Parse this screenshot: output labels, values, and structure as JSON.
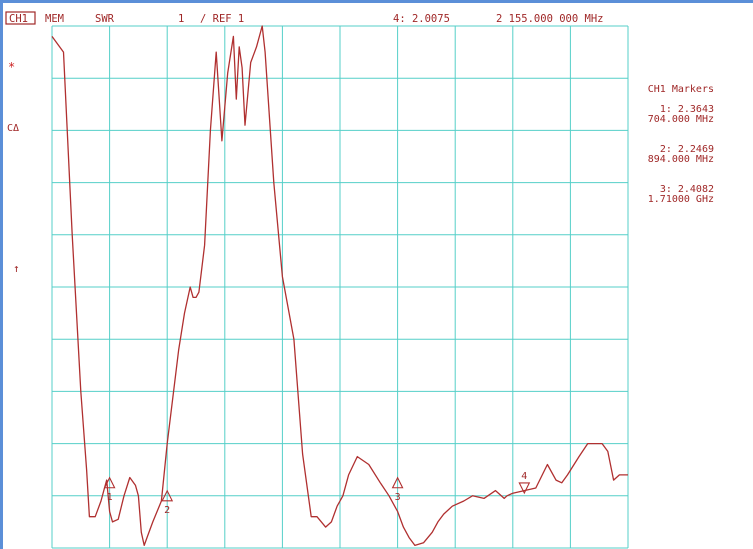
{
  "colors": {
    "trace": "#b03030",
    "grid": "#55cfc8",
    "text": "#a02828",
    "frame": "#5b8fd8",
    "background": "#ffffff"
  },
  "header": {
    "channel": "CH1",
    "mem": "MEM",
    "format": "SWR",
    "scale": "1",
    "ref": "/ REF 1",
    "active_marker_value": "4: 2.0075",
    "active_marker_freq": "2 155.000 000 MHz"
  },
  "left_annotations": {
    "star": "*",
    "cdelta": "CΔ",
    "ref_arrow": "↑"
  },
  "markers_panel": {
    "title": "CH1 Markers",
    "items": [
      {
        "value": "1: 2.3643",
        "freq": "704.000 MHz"
      },
      {
        "value": "2: 2.2469",
        "freq": "894.000 MHz"
      },
      {
        "value": "3: 2.4082",
        "freq": "1.71000 GHz"
      }
    ]
  },
  "chart_data": {
    "type": "line",
    "ylabel": "SWR",
    "scale_per_div": 1,
    "reference_value": 1,
    "grid": true,
    "divisions_x": 10,
    "divisions_y": 10,
    "series": [
      {
        "x": [
          0,
          0.2,
          0.35,
          0.5,
          0.6,
          0.65,
          0.75,
          0.85,
          0.9,
          0.95,
          1.0,
          1.05,
          1.15,
          1.25,
          1.35,
          1.45,
          1.5,
          1.55,
          1.6,
          1.65,
          1.75,
          1.9,
          2.0,
          2.2,
          2.3,
          2.4,
          2.45,
          2.5,
          2.55,
          2.65,
          2.75,
          2.85,
          2.95,
          3.05,
          3.15,
          3.2,
          3.25,
          3.3,
          3.35,
          3.45,
          3.55,
          3.65,
          3.7,
          3.85,
          4.0,
          4.2,
          4.35,
          4.5,
          4.6,
          4.75,
          4.85,
          4.95,
          5.05,
          5.15,
          5.3,
          5.5,
          5.7,
          5.85,
          6.0,
          6.1,
          6.2,
          6.3,
          6.45,
          6.6,
          6.7,
          6.8,
          6.95,
          7.15,
          7.3,
          7.5,
          7.7,
          7.85,
          7.9,
          8.0,
          8.2,
          8.4,
          8.6,
          8.75,
          8.85,
          8.95,
          9.15,
          9.3,
          9.4,
          9.55,
          9.65,
          9.75,
          9.85,
          10.0
        ],
        "y": [
          9.8,
          9.5,
          6.0,
          3.0,
          1.5,
          0.6,
          0.6,
          0.9,
          1.1,
          1.3,
          0.7,
          0.5,
          0.55,
          1.0,
          1.35,
          1.2,
          1.0,
          0.3,
          0.05,
          0.2,
          0.5,
          0.9,
          2.0,
          3.8,
          4.5,
          5.0,
          4.8,
          4.8,
          4.9,
          5.8,
          8.0,
          9.5,
          7.8,
          9.1,
          9.8,
          8.6,
          9.6,
          9.2,
          8.1,
          9.3,
          9.6,
          10.0,
          9.5,
          7.0,
          5.2,
          4.0,
          1.8,
          0.6,
          0.6,
          0.4,
          0.5,
          0.8,
          1.0,
          1.4,
          1.75,
          1.6,
          1.25,
          1.0,
          0.7,
          0.4,
          0.2,
          0.05,
          0.1,
          0.3,
          0.5,
          0.65,
          0.8,
          0.9,
          1.0,
          0.95,
          1.1,
          0.95,
          1.0,
          1.05,
          1.1,
          1.15,
          1.6,
          1.3,
          1.25,
          1.4,
          1.75,
          2.0,
          2.0,
          2.0,
          1.85,
          1.3,
          1.4,
          1.4
        ]
      }
    ],
    "markers": [
      {
        "label": "1",
        "x": 1.0,
        "y": 1.25,
        "direction": "up"
      },
      {
        "label": "2",
        "x": 2.0,
        "y": 1.0,
        "direction": "up"
      },
      {
        "label": "3",
        "x": 6.0,
        "y": 1.25,
        "direction": "up"
      },
      {
        "label": "4",
        "x": 8.2,
        "y": 1.15,
        "direction": "down"
      }
    ]
  }
}
